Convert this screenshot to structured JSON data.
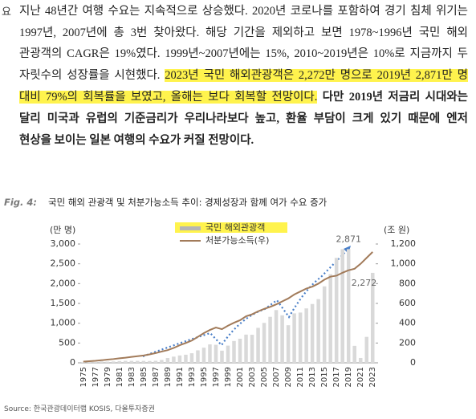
{
  "margin_char": "요",
  "paragraph": {
    "lines": [
      [
        "지난 48년간 여행 수요는 지속적으로 상승했다. 2020년 코로나를 포함하여 경기 침체 위기는"
      ],
      [
        "1997년, 2007년에 총 3번 찾아왔다. 해당 기간을 제외하고 보면 1978~1996년 국민 해외"
      ],
      [
        "관광객의 CAGR은 19%였다. 1999년~2007년에는 15%, 2010~2019년은 10%로 지금까지 두"
      ],
      [
        "자릿수의 성장률을 시현했다.",
        "2023년 국민 해외관광객은 2,272만 명으로 2019년 2,871만 명"
      ],
      [
        "대비 79%의 회복률을 보였고, 올해는 보다 회복할 전망이다.",
        "다만 2019년 저금리 시대와는"
      ],
      [
        "달리 미국과 유럽의 기준금리가 우리나라보다 높고, 환율 부담이 크게 있기 때문에 엔저"
      ],
      [
        "현상을 보이는 일본 여행의 수요가 커질 전망이다."
      ]
    ]
  },
  "figure": {
    "label": "Fig. 4:",
    "caption": "국민 해외 관광객 및 처분가능소득 추이: 경제성장과 함께 여가 수요 증가"
  },
  "chart_data": {
    "type": "bar",
    "y_unit": "(만 명)",
    "y2_unit": "(조 원)",
    "categories": [
      "1975",
      null,
      "1977",
      null,
      "1979",
      null,
      "1981",
      null,
      "1983",
      null,
      "1985",
      null,
      "1987",
      null,
      "1989",
      null,
      "1991",
      null,
      "1993",
      null,
      "1995",
      null,
      "1997",
      null,
      "1999",
      null,
      "2001",
      null,
      "2003",
      null,
      "2005",
      null,
      "2007",
      null,
      "2009",
      null,
      "2011",
      null,
      "2013",
      null,
      "2015",
      null,
      "2017",
      null,
      "2019",
      null,
      "2021",
      null,
      "2023"
    ],
    "series": [
      {
        "name": "국민 해외관광객",
        "type": "bar",
        "color": "#d9d9d9",
        "values": [
          13,
          20,
          21,
          35,
          30,
          34,
          44,
          50,
          49,
          49,
          48,
          45,
          51,
          72,
          121,
          156,
          186,
          204,
          242,
          315,
          382,
          465,
          455,
          307,
          434,
          551,
          608,
          712,
          709,
          883,
          1008,
          1161,
          1332,
          1200,
          949,
          1249,
          1269,
          1374,
          1485,
          1608,
          1931,
          2238,
          2650,
          2870,
          2871,
          428,
          122,
          655,
          2272
        ],
        "value_labels": [
          null,
          null,
          null,
          null,
          null,
          null,
          null,
          null,
          null,
          null,
          null,
          null,
          null,
          null,
          null,
          null,
          null,
          null,
          null,
          null,
          null,
          null,
          null,
          null,
          null,
          null,
          null,
          null,
          null,
          null,
          null,
          null,
          null,
          null,
          null,
          null,
          null,
          null,
          null,
          null,
          null,
          null,
          null,
          null,
          "2,871",
          null,
          null,
          null,
          "2,272"
        ]
      },
      {
        "name": "처분가능소득(우)",
        "type": "line",
        "axis": "y2",
        "color": "#a27b5a",
        "values": [
          12,
          16,
          20,
          26,
          32,
          38,
          46,
          52,
          60,
          67,
          74,
          85,
          98,
          114,
          128,
          150,
          178,
          200,
          225,
          262,
          300,
          332,
          356,
          340,
          375,
          405,
          430,
          470,
          490,
          520,
          545,
          565,
          590,
          620,
          650,
          690,
          720,
          750,
          770,
          800,
          840,
          870,
          880,
          910,
          935,
          950,
          1000,
          1060,
          1120
        ]
      }
    ],
    "ylim": [
      0,
      3000
    ],
    "yticks": [
      0,
      500,
      {
        "value": 1000,
        "label": "1,000"
      },
      {
        "value": 1500,
        "label": "1,500"
      },
      {
        "value": 2000,
        "label": "2,000"
      },
      {
        "value": 2500,
        "label": "2,500"
      },
      {
        "value": 3000,
        "label": "3,000"
      }
    ],
    "y2lim": [
      0,
      1200
    ],
    "y2ticks": [
      0,
      200,
      400,
      600,
      800,
      {
        "value": 1000,
        "label": "1,000"
      },
      {
        "value": 1200,
        "label": "1,200"
      }
    ]
  },
  "source": "Source: 한국관광데이터랩 KOSIS, 다올투자증권"
}
